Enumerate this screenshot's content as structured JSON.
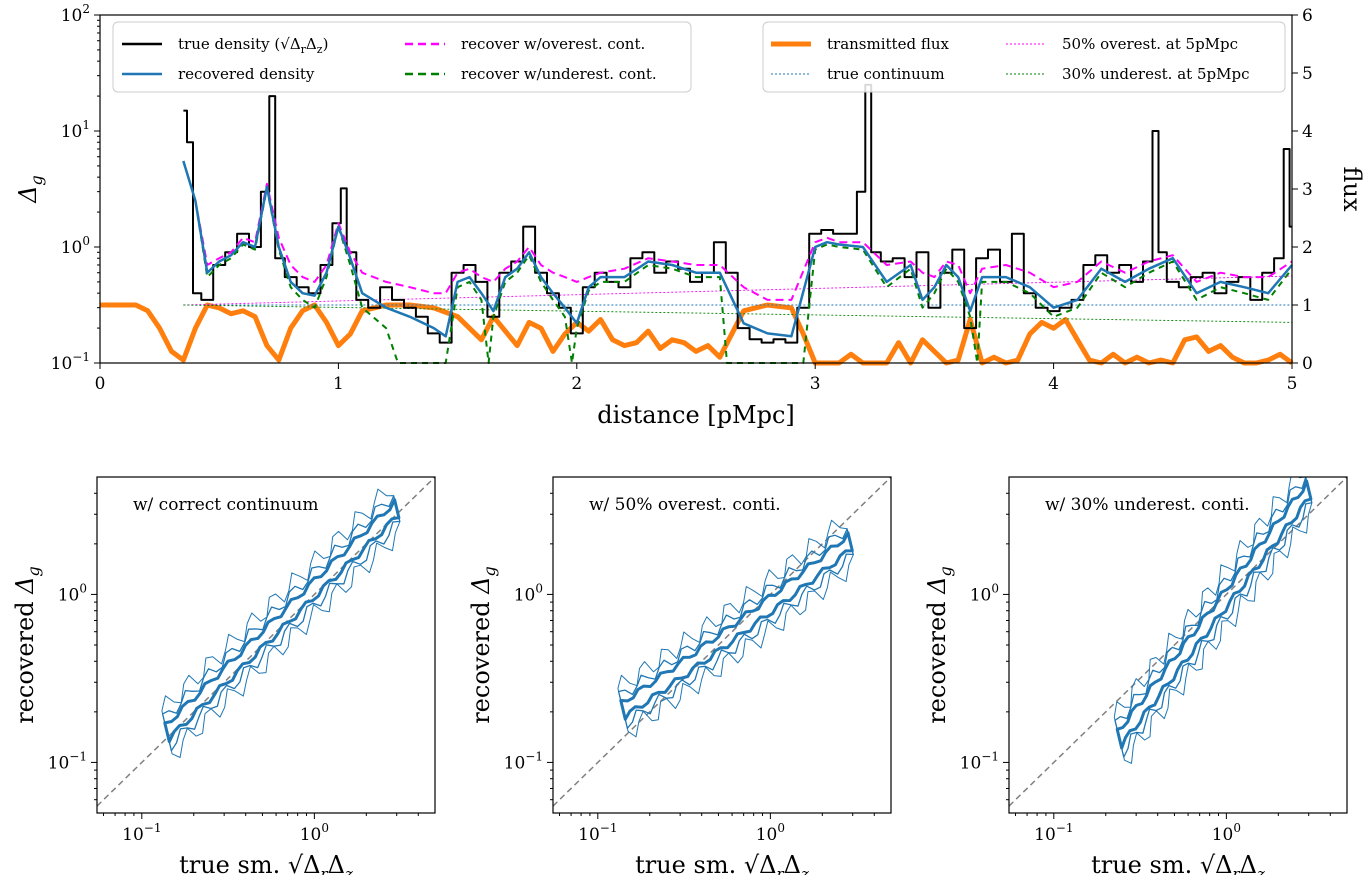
{
  "chart_data": [
    {
      "type": "line",
      "xlabel": "distance [pMpc]",
      "ylabel": "Δ",
      "ylabel_sub": "g",
      "ylabel_right": "flux",
      "xlim": [
        0,
        5
      ],
      "ylim": [
        0.1,
        100
      ],
      "y_scale": "log",
      "ylim_right": [
        0,
        6
      ],
      "x_ticks": [
        "0",
        "1",
        "2",
        "3",
        "4",
        "5"
      ],
      "y_ticks": [
        {
          "base": "10",
          "exp": "−1"
        },
        {
          "base": "10",
          "exp": "0"
        },
        {
          "base": "10",
          "exp": "1"
        },
        {
          "base": "10",
          "exp": "2"
        }
      ],
      "y_ticks_right": [
        "0",
        "1",
        "2",
        "3",
        "4",
        "5",
        "6"
      ],
      "legend_left": {
        "placement": "upper-left",
        "entries": [
          {
            "label": "true density (√Δ",
            "label_r": "r",
            "label_mid": "Δ",
            "label_z": "z",
            "label_end": ")",
            "color": "#000000",
            "style": "solid"
          },
          {
            "label": "recover w/overest. cont.",
            "color": "#ff00ff",
            "style": "dashed"
          },
          {
            "label": "recovered density",
            "color": "#1f77b4",
            "style": "solid"
          },
          {
            "label": "recover w/underest. cont.",
            "color": "#008000",
            "style": "dashed"
          }
        ]
      },
      "legend_right": {
        "placement": "upper-right",
        "entries": [
          {
            "label": "transmitted flux",
            "color": "#ff7f0e",
            "style": "thick"
          },
          {
            "label": "50% overest. at 5pMpc",
            "color": "#ff00ff",
            "style": "dotted"
          },
          {
            "label": "true continuum",
            "color": "#1f77b4",
            "style": "dotted"
          },
          {
            "label": "30% underest. at 5pMpc",
            "color": "#008000",
            "style": "dotted"
          }
        ]
      },
      "series": [
        {
          "key": "true",
          "color": "#000000",
          "x": [
            0.35,
            0.38,
            0.4,
            0.45,
            0.5,
            0.55,
            0.6,
            0.65,
            0.7,
            0.72,
            0.75,
            0.8,
            0.85,
            0.9,
            0.95,
            1.0,
            1.02,
            1.05,
            1.1,
            1.15,
            1.2,
            1.25,
            1.3,
            1.35,
            1.4,
            1.45,
            1.5,
            1.55,
            1.6,
            1.65,
            1.7,
            1.75,
            1.8,
            1.85,
            1.9,
            1.95,
            2.0,
            2.05,
            2.1,
            2.15,
            2.2,
            2.25,
            2.3,
            2.35,
            2.4,
            2.45,
            2.5,
            2.55,
            2.6,
            2.65,
            2.7,
            2.75,
            2.8,
            2.85,
            2.9,
            2.95,
            3.0,
            3.05,
            3.1,
            3.15,
            3.2,
            3.22,
            3.25,
            3.3,
            3.35,
            3.4,
            3.45,
            3.5,
            3.55,
            3.6,
            3.65,
            3.7,
            3.75,
            3.8,
            3.85,
            3.9,
            3.95,
            4.0,
            4.05,
            4.1,
            4.15,
            4.2,
            4.25,
            4.3,
            4.35,
            4.4,
            4.43,
            4.45,
            4.5,
            4.55,
            4.6,
            4.65,
            4.7,
            4.75,
            4.8,
            4.85,
            4.9,
            4.95,
            4.98,
            5.0
          ],
          "y": [
            15,
            8,
            0.4,
            0.35,
            0.7,
            0.9,
            1.3,
            1.0,
            3.0,
            20,
            0.8,
            0.55,
            0.45,
            0.4,
            0.7,
            1.6,
            3.2,
            0.9,
            0.35,
            0.3,
            0.45,
            0.35,
            0.3,
            0.25,
            0.18,
            0.15,
            0.6,
            0.7,
            0.5,
            0.25,
            0.6,
            0.75,
            1.5,
            0.6,
            0.4,
            0.3,
            0.18,
            0.45,
            0.6,
            0.5,
            0.45,
            0.8,
            0.9,
            0.6,
            0.75,
            0.65,
            0.5,
            0.6,
            1.1,
            0.6,
            0.2,
            0.16,
            0.15,
            0.16,
            0.15,
            0.3,
            1.3,
            1.4,
            1.3,
            1.3,
            3.0,
            25,
            0.9,
            0.75,
            0.8,
            0.55,
            0.9,
            0.3,
            0.6,
            0.95,
            0.2,
            0.8,
            0.95,
            0.5,
            1.3,
            0.4,
            0.3,
            0.28,
            0.3,
            0.35,
            0.7,
            0.85,
            0.6,
            0.7,
            0.5,
            0.75,
            10,
            0.9,
            0.5,
            0.45,
            0.55,
            0.6,
            0.4,
            0.5,
            0.55,
            0.35,
            0.6,
            0.8,
            7,
            1.5
          ]
        },
        {
          "key": "overest",
          "color": "#ff00ff",
          "x": [
            0.35,
            0.4,
            0.45,
            0.5,
            0.55,
            0.6,
            0.65,
            0.7,
            0.75,
            0.8,
            0.85,
            0.9,
            0.95,
            1.0,
            1.05,
            1.1,
            1.2,
            1.3,
            1.4,
            1.45,
            1.5,
            1.55,
            1.6,
            1.65,
            1.7,
            1.75,
            1.8,
            1.85,
            1.9,
            1.95,
            2.0,
            2.05,
            2.1,
            2.2,
            2.3,
            2.4,
            2.5,
            2.6,
            2.7,
            2.8,
            2.9,
            3.0,
            3.05,
            3.1,
            3.2,
            3.3,
            3.4,
            3.45,
            3.5,
            3.55,
            3.6,
            3.65,
            3.7,
            3.8,
            3.9,
            4.0,
            4.1,
            4.2,
            4.3,
            4.4,
            4.5,
            4.6,
            4.7,
            4.8,
            4.9,
            5.0
          ],
          "y": [
            5.5,
            2.5,
            0.7,
            0.8,
            0.9,
            1.2,
            1.1,
            3.5,
            1.2,
            0.7,
            0.55,
            0.5,
            0.7,
            1.6,
            0.9,
            0.6,
            0.5,
            0.45,
            0.4,
            0.4,
            0.6,
            0.65,
            0.55,
            0.5,
            0.65,
            0.75,
            1.0,
            0.7,
            0.6,
            0.55,
            0.5,
            0.55,
            0.6,
            0.65,
            0.8,
            0.75,
            0.7,
            0.7,
            0.45,
            0.35,
            0.35,
            1.1,
            1.2,
            1.1,
            1.1,
            0.7,
            0.75,
            0.6,
            0.55,
            0.75,
            0.7,
            0.4,
            0.65,
            0.7,
            0.6,
            0.45,
            0.5,
            0.75,
            0.6,
            0.75,
            0.85,
            0.5,
            0.6,
            0.55,
            0.55,
            0.75
          ]
        },
        {
          "key": "recovered",
          "color": "#1f77b4",
          "x": [
            0.35,
            0.4,
            0.45,
            0.5,
            0.55,
            0.6,
            0.65,
            0.7,
            0.75,
            0.8,
            0.85,
            0.9,
            0.95,
            1.0,
            1.05,
            1.1,
            1.2,
            1.3,
            1.4,
            1.45,
            1.5,
            1.55,
            1.6,
            1.65,
            1.7,
            1.75,
            1.8,
            1.85,
            1.9,
            1.95,
            2.0,
            2.05,
            2.1,
            2.2,
            2.3,
            2.4,
            2.5,
            2.6,
            2.7,
            2.8,
            2.9,
            3.0,
            3.05,
            3.1,
            3.2,
            3.3,
            3.4,
            3.45,
            3.5,
            3.55,
            3.6,
            3.65,
            3.7,
            3.8,
            3.9,
            4.0,
            4.1,
            4.2,
            4.3,
            4.4,
            4.5,
            4.6,
            4.7,
            4.8,
            4.9,
            5.0
          ],
          "y": [
            5.5,
            2.5,
            0.6,
            0.75,
            0.85,
            1.1,
            1.0,
            3.3,
            1.0,
            0.5,
            0.4,
            0.38,
            0.6,
            1.5,
            0.8,
            0.4,
            0.3,
            0.25,
            0.2,
            0.17,
            0.5,
            0.55,
            0.4,
            0.28,
            0.55,
            0.65,
            0.9,
            0.55,
            0.4,
            0.3,
            0.22,
            0.45,
            0.55,
            0.55,
            0.75,
            0.7,
            0.6,
            0.6,
            0.22,
            0.18,
            0.17,
            1.0,
            1.1,
            1.05,
            1.0,
            0.5,
            0.7,
            0.35,
            0.45,
            0.7,
            0.55,
            0.28,
            0.55,
            0.55,
            0.45,
            0.3,
            0.35,
            0.65,
            0.5,
            0.65,
            0.8,
            0.4,
            0.5,
            0.45,
            0.4,
            0.7
          ]
        },
        {
          "key": "underest",
          "color": "#008000",
          "x": [
            0.35,
            0.4,
            0.45,
            0.5,
            0.55,
            0.6,
            0.65,
            0.7,
            0.75,
            0.8,
            0.85,
            0.9,
            0.95,
            1.0,
            1.05,
            1.1,
            1.2,
            1.25,
            1.3,
            1.4,
            1.45,
            1.5,
            1.55,
            1.6,
            1.63,
            1.65,
            1.7,
            1.75,
            1.8,
            1.85,
            1.9,
            1.95,
            1.98,
            2.0,
            2.05,
            2.1,
            2.2,
            2.3,
            2.4,
            2.5,
            2.6,
            2.63,
            2.7,
            2.8,
            2.9,
            2.95,
            3.0,
            3.05,
            3.1,
            3.2,
            3.3,
            3.4,
            3.45,
            3.5,
            3.55,
            3.6,
            3.65,
            3.68,
            3.7,
            3.8,
            3.9,
            4.0,
            4.1,
            4.2,
            4.3,
            4.4,
            4.5,
            4.6,
            4.7,
            4.8,
            4.9,
            5.0
          ],
          "y": [
            5.5,
            2.5,
            0.55,
            0.7,
            0.8,
            1.05,
            0.95,
            3.2,
            0.95,
            0.45,
            0.35,
            0.3,
            0.55,
            1.5,
            0.7,
            0.3,
            0.2,
            0.1,
            0.1,
            0.1,
            0.1,
            0.45,
            0.5,
            0.35,
            0.1,
            0.25,
            0.5,
            0.6,
            0.85,
            0.5,
            0.35,
            0.25,
            0.1,
            0.2,
            0.42,
            0.5,
            0.5,
            0.7,
            0.65,
            0.55,
            0.55,
            0.1,
            0.1,
            0.1,
            0.1,
            0.1,
            0.95,
            1.05,
            1.0,
            0.95,
            0.45,
            0.65,
            0.3,
            0.4,
            0.65,
            0.5,
            0.25,
            0.1,
            0.5,
            0.5,
            0.4,
            0.25,
            0.3,
            0.6,
            0.45,
            0.6,
            0.75,
            0.35,
            0.45,
            0.4,
            0.35,
            0.65
          ]
        },
        {
          "key": "flux",
          "color": "#ff7f0e",
          "axis": "right",
          "x": [
            0,
            0.15,
            0.2,
            0.25,
            0.3,
            0.35,
            0.4,
            0.45,
            0.5,
            0.55,
            0.6,
            0.65,
            0.7,
            0.75,
            0.8,
            0.85,
            0.9,
            0.95,
            1.0,
            1.05,
            1.1,
            1.15,
            1.2,
            1.3,
            1.4,
            1.5,
            1.55,
            1.6,
            1.65,
            1.7,
            1.75,
            1.8,
            1.85,
            1.9,
            1.95,
            2.0,
            2.05,
            2.1,
            2.15,
            2.2,
            2.25,
            2.3,
            2.35,
            2.4,
            2.45,
            2.5,
            2.55,
            2.6,
            2.7,
            2.8,
            2.9,
            2.95,
            3.0,
            3.1,
            3.15,
            3.2,
            3.3,
            3.35,
            3.4,
            3.45,
            3.5,
            3.55,
            3.6,
            3.65,
            3.7,
            3.75,
            3.8,
            3.85,
            3.9,
            3.95,
            4.0,
            4.05,
            4.1,
            4.15,
            4.2,
            4.25,
            4.3,
            4.35,
            4.4,
            4.45,
            4.5,
            4.55,
            4.6,
            4.65,
            4.7,
            4.75,
            4.8,
            4.85,
            4.9,
            4.95,
            5.0
          ],
          "y": [
            1.0,
            1.0,
            0.9,
            0.6,
            0.2,
            0.05,
            0.6,
            1.0,
            0.95,
            0.85,
            0.9,
            0.8,
            0.3,
            0.05,
            0.6,
            0.9,
            1.0,
            0.7,
            0.3,
            0.5,
            0.9,
            0.95,
            1.0,
            1.0,
            0.95,
            0.8,
            0.6,
            0.4,
            0.8,
            0.55,
            0.3,
            0.7,
            0.6,
            0.2,
            0.5,
            0.7,
            0.55,
            0.75,
            0.4,
            0.3,
            0.35,
            0.55,
            0.25,
            0.4,
            0.35,
            0.2,
            0.3,
            0.1,
            0.9,
            1.0,
            0.95,
            0.5,
            0.0,
            0.0,
            0.15,
            0.0,
            0.0,
            0.35,
            0.0,
            0.4,
            0.2,
            0.0,
            0.05,
            0.75,
            0.0,
            0.1,
            0.0,
            0.05,
            0.5,
            0.7,
            0.6,
            0.75,
            0.4,
            0.05,
            0.0,
            0.15,
            0.0,
            0.1,
            0.0,
            0.05,
            0.0,
            0.4,
            0.45,
            0.2,
            0.3,
            0.1,
            0.0,
            0.0,
            0.05,
            0.15,
            0.0
          ]
        },
        {
          "key": "continuum_true",
          "color": "#1f77b4",
          "axis": "right",
          "x": [
            0.35,
            5.0
          ],
          "y": [
            1.0,
            1.0
          ]
        },
        {
          "key": "continuum_over",
          "color": "#ff00ff",
          "axis": "right",
          "x": [
            0.35,
            5.0
          ],
          "y": [
            1.0,
            1.5
          ]
        },
        {
          "key": "continuum_under",
          "color": "#008000",
          "axis": "right",
          "x": [
            0.35,
            5.0
          ],
          "y": [
            1.0,
            0.7
          ]
        }
      ]
    },
    {
      "type": "contour",
      "annotation": "w/ correct continuum",
      "xlabel": "true sm.",
      "ylabel": "recovered",
      "y_symbol": "Δ",
      "y_sub": "g",
      "x_scale": "log",
      "y_scale": "log",
      "xlim": [
        0.055,
        5
      ],
      "ylim": [
        0.05,
        5
      ],
      "x_ticks": [
        {
          "base": "10",
          "exp": "−1"
        },
        {
          "base": "10",
          "exp": "0"
        }
      ],
      "y_ticks": [
        {
          "base": "10",
          "exp": "−1"
        },
        {
          "base": "10",
          "exp": "0"
        }
      ],
      "color": "#1f77b4"
    },
    {
      "type": "contour",
      "annotation": "w/ 50% overest. conti.",
      "xlabel": "true sm.",
      "ylabel": "recovered",
      "y_symbol": "Δ",
      "y_sub": "g",
      "x_scale": "log",
      "y_scale": "log",
      "xlim": [
        0.055,
        5
      ],
      "ylim": [
        0.05,
        5
      ],
      "x_ticks": [
        {
          "base": "10",
          "exp": "−1"
        },
        {
          "base": "10",
          "exp": "0"
        }
      ],
      "y_ticks": [
        {
          "base": "10",
          "exp": "−1"
        },
        {
          "base": "10",
          "exp": "0"
        }
      ],
      "color": "#1f77b4"
    },
    {
      "type": "contour",
      "annotation": "w/ 30% underest. conti.",
      "xlabel": "true sm.",
      "ylabel": "recovered",
      "y_symbol": "Δ",
      "y_sub": "g",
      "x_scale": "log",
      "y_scale": "log",
      "xlim": [
        0.055,
        5
      ],
      "ylim": [
        0.05,
        5
      ],
      "x_ticks": [
        {
          "base": "10",
          "exp": "−1"
        },
        {
          "base": "10",
          "exp": "0"
        }
      ],
      "y_ticks": [
        {
          "base": "10",
          "exp": "−1"
        },
        {
          "base": "10",
          "exp": "0"
        }
      ],
      "color": "#1f77b4"
    }
  ],
  "colors": {
    "true": "#000000",
    "recovered": "#1f77b4",
    "overest": "#ff00ff",
    "underest": "#008000",
    "flux": "#ff7f0e",
    "diagonal": "#808080"
  }
}
